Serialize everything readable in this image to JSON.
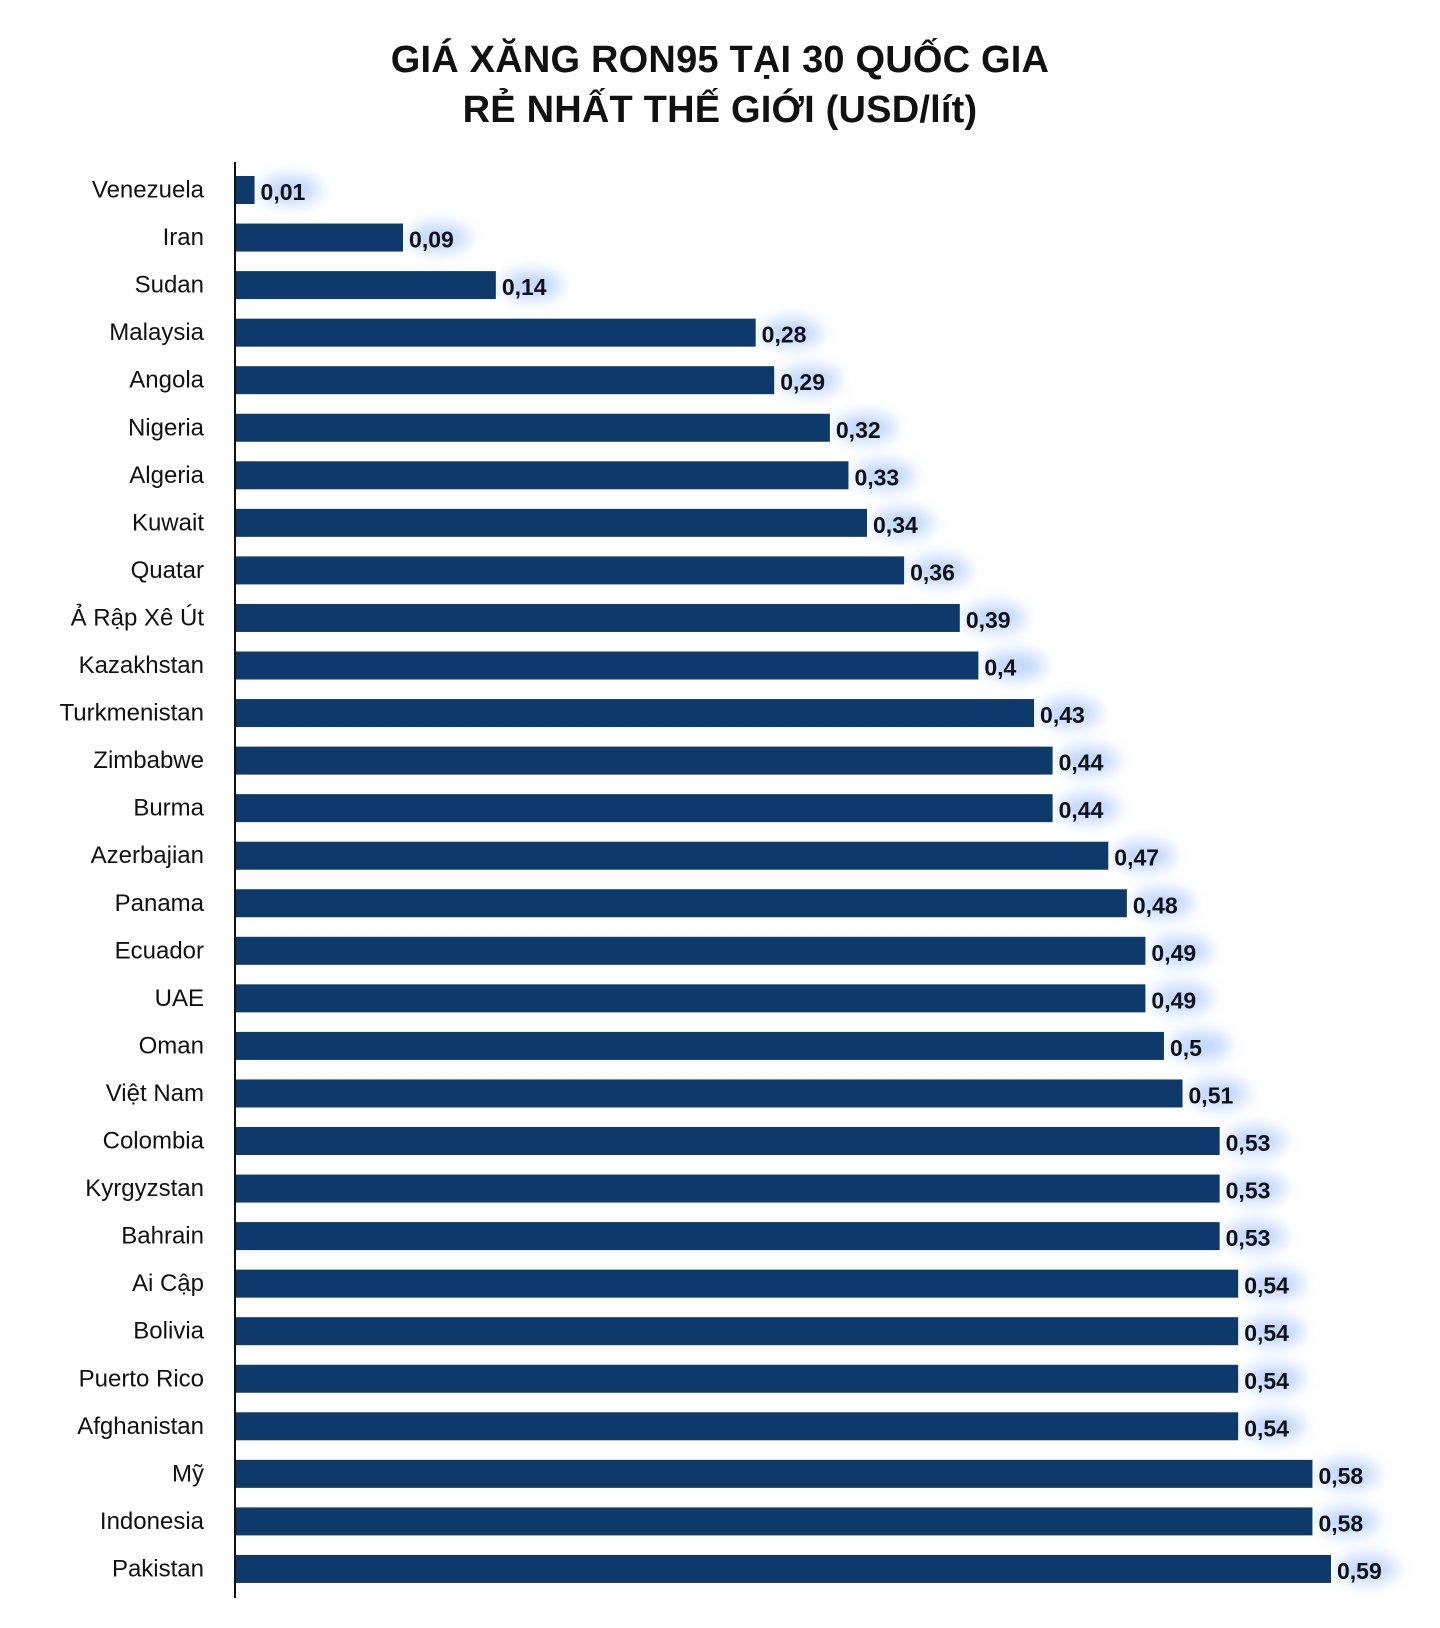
{
  "title_line1": "GIÁ XĂNG RON95 TẠI 30 QUỐC GIA",
  "title_line2": "RẺ NHẤT THẾ GIỚI (USD/lít)",
  "colors": {
    "bar": "#0d3a6b",
    "text": "#111111",
    "axis": "#111111",
    "glow": "#6fa3ff"
  },
  "chart_data": {
    "type": "bar",
    "orientation": "horizontal",
    "title": "GIÁ XĂNG RON95 TẠI 30 QUỐC GIA RẺ NHẤT THẾ GIỚI (USD/lít)",
    "categories": [
      "Venezuela",
      "Iran",
      "Sudan",
      "Malaysia",
      "Angola",
      "Nigeria",
      "Algeria",
      "Kuwait",
      "Quatar",
      "Ả Rập Xê Út",
      "Kazakhstan",
      "Turkmenistan",
      "Zimbabwe",
      "Burma",
      "Azerbajian",
      "Panama",
      "Ecuador",
      "UAE",
      "Oman",
      "Việt Nam",
      "Colombia",
      "Kyrgyzstan",
      "Bahrain",
      "Ai Cập",
      "Bolivia",
      "Puerto Rico",
      "Afghanistan",
      "Mỹ",
      "Indonesia",
      "Pakistan"
    ],
    "values": [
      0.01,
      0.09,
      0.14,
      0.28,
      0.29,
      0.32,
      0.33,
      0.34,
      0.36,
      0.39,
      0.4,
      0.43,
      0.44,
      0.44,
      0.47,
      0.48,
      0.49,
      0.49,
      0.5,
      0.51,
      0.53,
      0.53,
      0.53,
      0.54,
      0.54,
      0.54,
      0.54,
      0.58,
      0.58,
      0.59
    ],
    "value_labels": [
      "0,01",
      "0,09",
      "0,14",
      "0,28",
      "0,29",
      "0,32",
      "0,33",
      "0,34",
      "0,36",
      "0,39",
      "0,4",
      "0,43",
      "0,44",
      "0,44",
      "0,47",
      "0,48",
      "0,49",
      "0,49",
      "0,5",
      "0,51",
      "0,53",
      "0,53",
      "0,53",
      "0,54",
      "0,54",
      "0,54",
      "0,54",
      "0,58",
      "0,58",
      "0,59"
    ],
    "xlabel": "",
    "ylabel": "",
    "xlim": [
      0,
      0.59
    ],
    "grid": false,
    "legend": "none"
  }
}
